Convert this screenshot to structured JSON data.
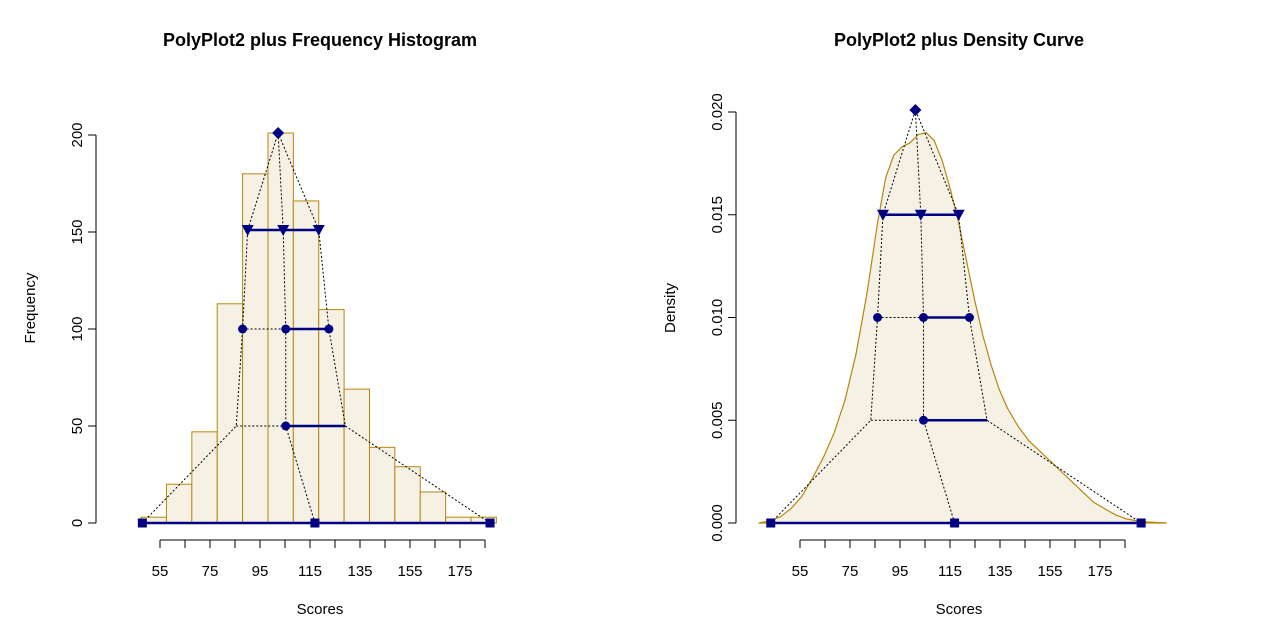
{
  "colors": {
    "fill": "#f6f1e5",
    "border": "#b8860b",
    "marker": "#000080",
    "line": "#000080",
    "dotted": "#000000"
  },
  "chart_data": [
    {
      "type": "bar",
      "title": "PolyPlot2 plus Frequency Histogram",
      "xlabel": "Scores",
      "ylabel": "Frequency",
      "xlim": [
        48,
        193
      ],
      "ylim": [
        0,
        200
      ],
      "x_ticks": [
        55,
        65,
        75,
        85,
        95,
        105,
        115,
        125,
        135,
        145,
        155,
        165,
        175,
        185
      ],
      "x_tick_labels": [
        "55",
        "75",
        "95",
        "115",
        "135",
        "155",
        "175"
      ],
      "y_ticks": [
        0,
        50,
        100,
        150,
        200
      ],
      "y_tick_labels": [
        "0",
        "50",
        "100",
        "150",
        "200"
      ],
      "grid": false,
      "bins": [
        {
          "x0": 50,
          "x1": 60,
          "value": 3
        },
        {
          "x0": 60,
          "x1": 70,
          "value": 20
        },
        {
          "x0": 70,
          "x1": 80,
          "value": 47
        },
        {
          "x0": 80,
          "x1": 90,
          "value": 113
        },
        {
          "x0": 90,
          "x1": 100,
          "value": 180
        },
        {
          "x0": 100,
          "x1": 110,
          "value": 201
        },
        {
          "x0": 110,
          "x1": 120,
          "value": 166
        },
        {
          "x0": 120,
          "x1": 130,
          "value": 110
        },
        {
          "x0": 130,
          "x1": 140,
          "value": 69
        },
        {
          "x0": 140,
          "x1": 150,
          "value": 39
        },
        {
          "x0": 150,
          "x1": 160,
          "value": 29
        },
        {
          "x0": 160,
          "x1": 170,
          "value": 16
        },
        {
          "x0": 170,
          "x1": 180,
          "value": 3
        },
        {
          "x0": 180,
          "x1": 190,
          "value": 3
        }
      ],
      "polyplot": {
        "base": {
          "y": 0,
          "left": 50.5,
          "center": 118.5,
          "right": 187.5
        },
        "q25": {
          "y": 50,
          "left": 87.5,
          "center": 107,
          "right": 130.5
        },
        "q50": {
          "y": 100,
          "left": 90,
          "center": 107,
          "right": 124
        },
        "q75": {
          "y": 151,
          "left": 92,
          "center": 106,
          "right": 120
        },
        "peak": {
          "x": 104,
          "y": 201
        }
      }
    },
    {
      "type": "area",
      "title": "PolyPlot2 plus Density Curve",
      "xlabel": "Scores",
      "ylabel": "Density",
      "xlim": [
        48,
        193
      ],
      "ylim": [
        0,
        0.02
      ],
      "x_ticks": [
        55,
        65,
        75,
        85,
        95,
        105,
        115,
        125,
        135,
        145,
        155,
        165,
        175,
        185
      ],
      "x_tick_labels": [
        "55",
        "75",
        "95",
        "115",
        "135",
        "155",
        "175"
      ],
      "y_ticks": [
        0,
        0.005,
        0.01,
        0.015,
        0.02
      ],
      "y_tick_labels": [
        "0.000",
        "0.005",
        "0.010",
        "0.015",
        "0.020"
      ],
      "grid": false,
      "density_curve": {
        "x": [
          46,
          50,
          54,
          58,
          62,
          66,
          70,
          74,
          78,
          82,
          86,
          90,
          93,
          96,
          99,
          102,
          105,
          108,
          111,
          114,
          117,
          120,
          123,
          126,
          129,
          132,
          135,
          138,
          142,
          146,
          150,
          154,
          158,
          162,
          166,
          170,
          174,
          178,
          182,
          186,
          190,
          194,
          197
        ],
        "y": [
          0,
          0.0001,
          0.0003,
          0.0007,
          0.0013,
          0.0022,
          0.0032,
          0.0044,
          0.006,
          0.0082,
          0.0111,
          0.0146,
          0.0168,
          0.0179,
          0.0183,
          0.0185,
          0.0189,
          0.019,
          0.0186,
          0.0176,
          0.0162,
          0.0146,
          0.0127,
          0.0108,
          0.0091,
          0.0077,
          0.0065,
          0.0056,
          0.0047,
          0.004,
          0.0035,
          0.003,
          0.0025,
          0.002,
          0.0015,
          0.001,
          0.0007,
          0.0004,
          0.0002,
          0.0001,
          5e-05,
          2e-05,
          0
        ]
      },
      "polyplot": {
        "base": {
          "y": 0,
          "left": 50.5,
          "center": 118.5,
          "right": 187.5
        },
        "q25": {
          "y": 0.005,
          "left": 87.5,
          "center": 107,
          "right": 130.5
        },
        "q50": {
          "y": 0.01,
          "left": 90,
          "center": 107,
          "right": 124
        },
        "q75": {
          "y": 0.015,
          "left": 92,
          "center": 106,
          "right": 120
        },
        "peak": {
          "x": 104,
          "y": 0.0201
        }
      }
    }
  ]
}
